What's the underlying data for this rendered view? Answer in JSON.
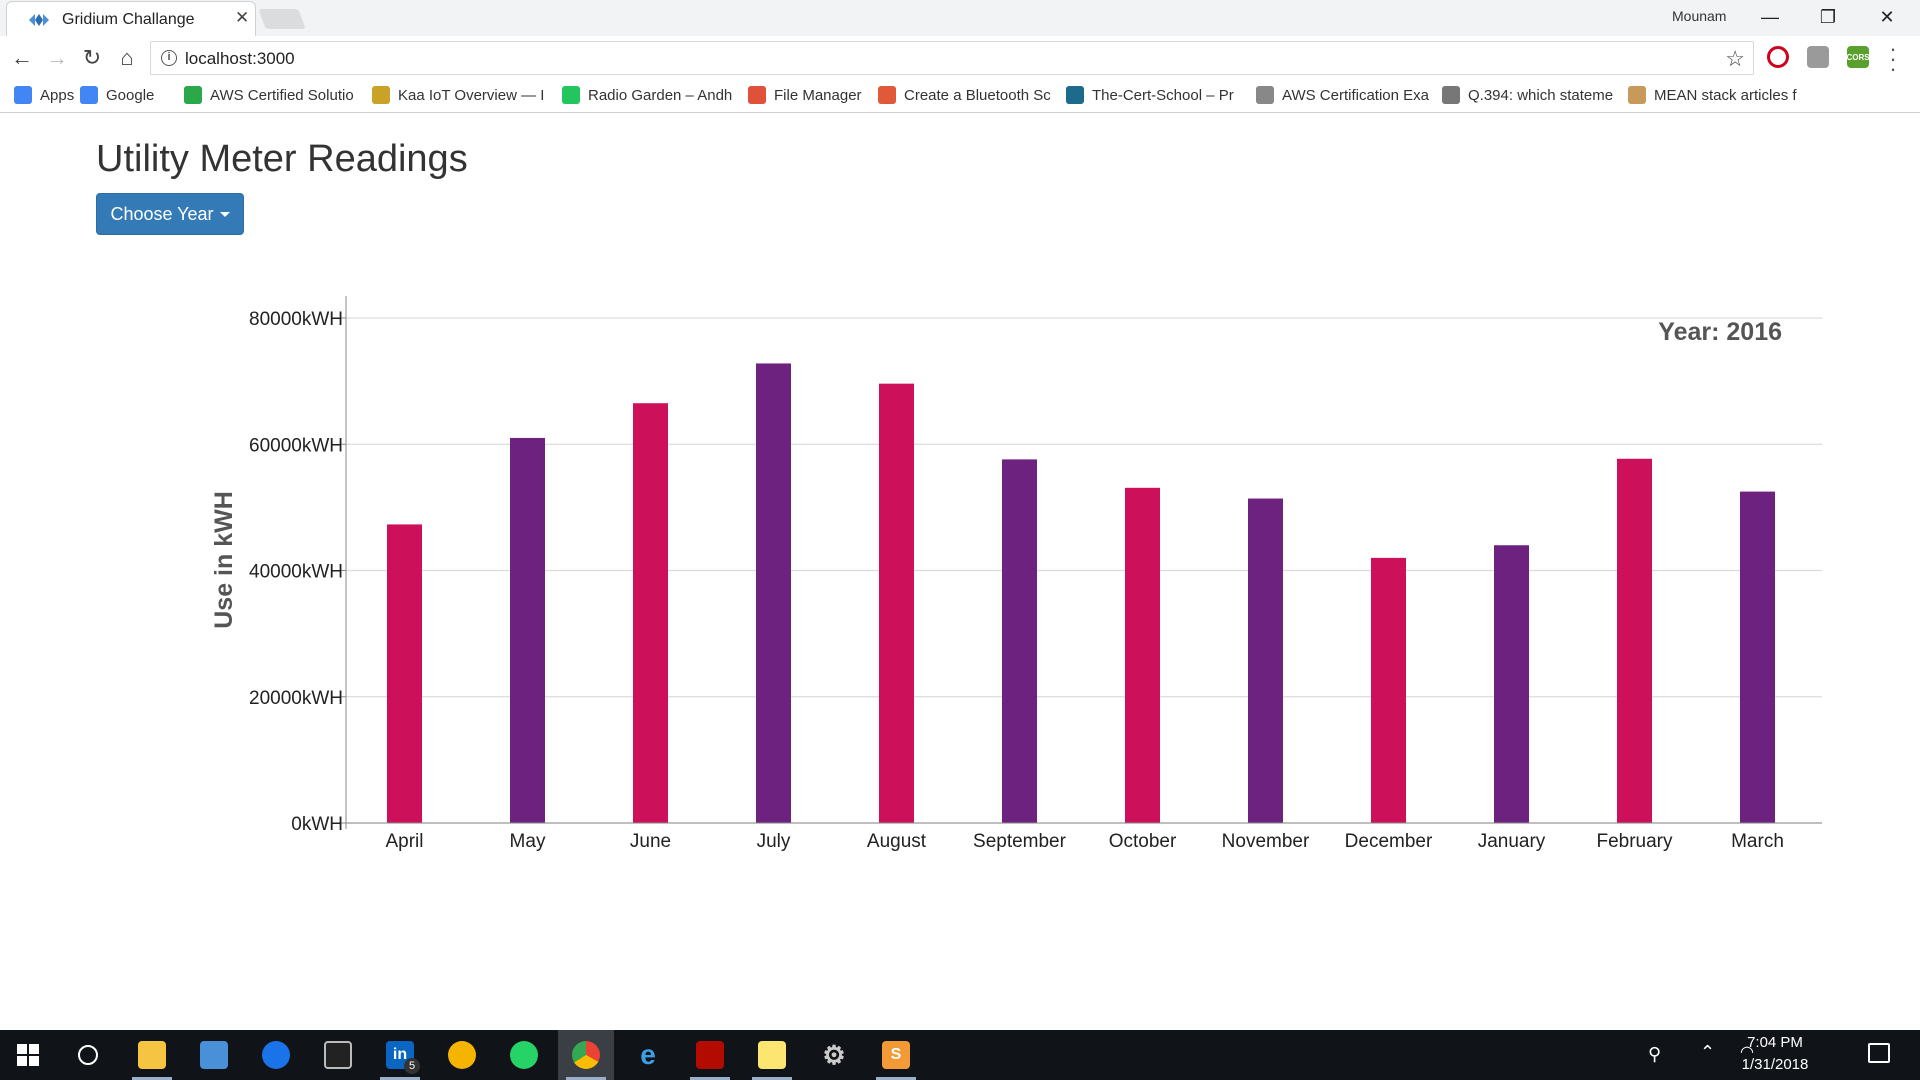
{
  "browser": {
    "tab_title": "Gridium Challange",
    "profile_name": "Mounam",
    "url": "localhost:3000",
    "bookmarks": [
      {
        "label": "Apps",
        "icon": "apps-grid-icon",
        "color": "#4285f4"
      },
      {
        "label": "Google",
        "icon": "google-icon",
        "color": "#4285f4"
      },
      {
        "label": "AWS Certified Solutio",
        "icon": "udemy-icon",
        "color": "#2ba84a"
      },
      {
        "label": "Kaa IoT Overview — I",
        "icon": "kaa-icon",
        "color": "#c9a227"
      },
      {
        "label": "Radio Garden – Andh",
        "icon": "radio-garden-icon",
        "color": "#22c55e"
      },
      {
        "label": "File Manager",
        "icon": "file-manager-icon",
        "color": "#e0513a"
      },
      {
        "label": "Create a Bluetooth Sc",
        "icon": "plus-icon",
        "color": "#e05a3a"
      },
      {
        "label": "The-Cert-School – Pr",
        "icon": "cert-school-icon",
        "color": "#1c6b8c"
      },
      {
        "label": "AWS Certification Exa",
        "icon": "document-icon",
        "color": "#888888"
      },
      {
        "label": "Q.394: which stateme",
        "icon": "edit-page-icon",
        "color": "#777777"
      },
      {
        "label": "MEAN stack articles f",
        "icon": "mean-icon",
        "color": "#c89a5a"
      }
    ]
  },
  "page": {
    "title": "Utility Meter Readings",
    "choose_year_label": "Choose Year"
  },
  "chart_data": {
    "type": "bar",
    "year_label": "Year: 2016",
    "ylabel": "Use in kWH",
    "xlabel": "",
    "ylim": [
      0,
      80000
    ],
    "y_ticks": [
      0,
      20000,
      40000,
      60000,
      80000
    ],
    "y_tick_suffix": "kWH",
    "grid": true,
    "categories": [
      "April",
      "May",
      "June",
      "July",
      "August",
      "September",
      "October",
      "November",
      "December",
      "January",
      "February",
      "March"
    ],
    "values": [
      47300,
      61000,
      66500,
      72800,
      69600,
      57600,
      53100,
      51400,
      42000,
      44000,
      57700,
      52500
    ],
    "colors": [
      "#cc1059",
      "#6e2280"
    ]
  },
  "taskbar": {
    "time": "7:04 PM",
    "date": "1/31/2018",
    "linkedin_badge": "5"
  }
}
